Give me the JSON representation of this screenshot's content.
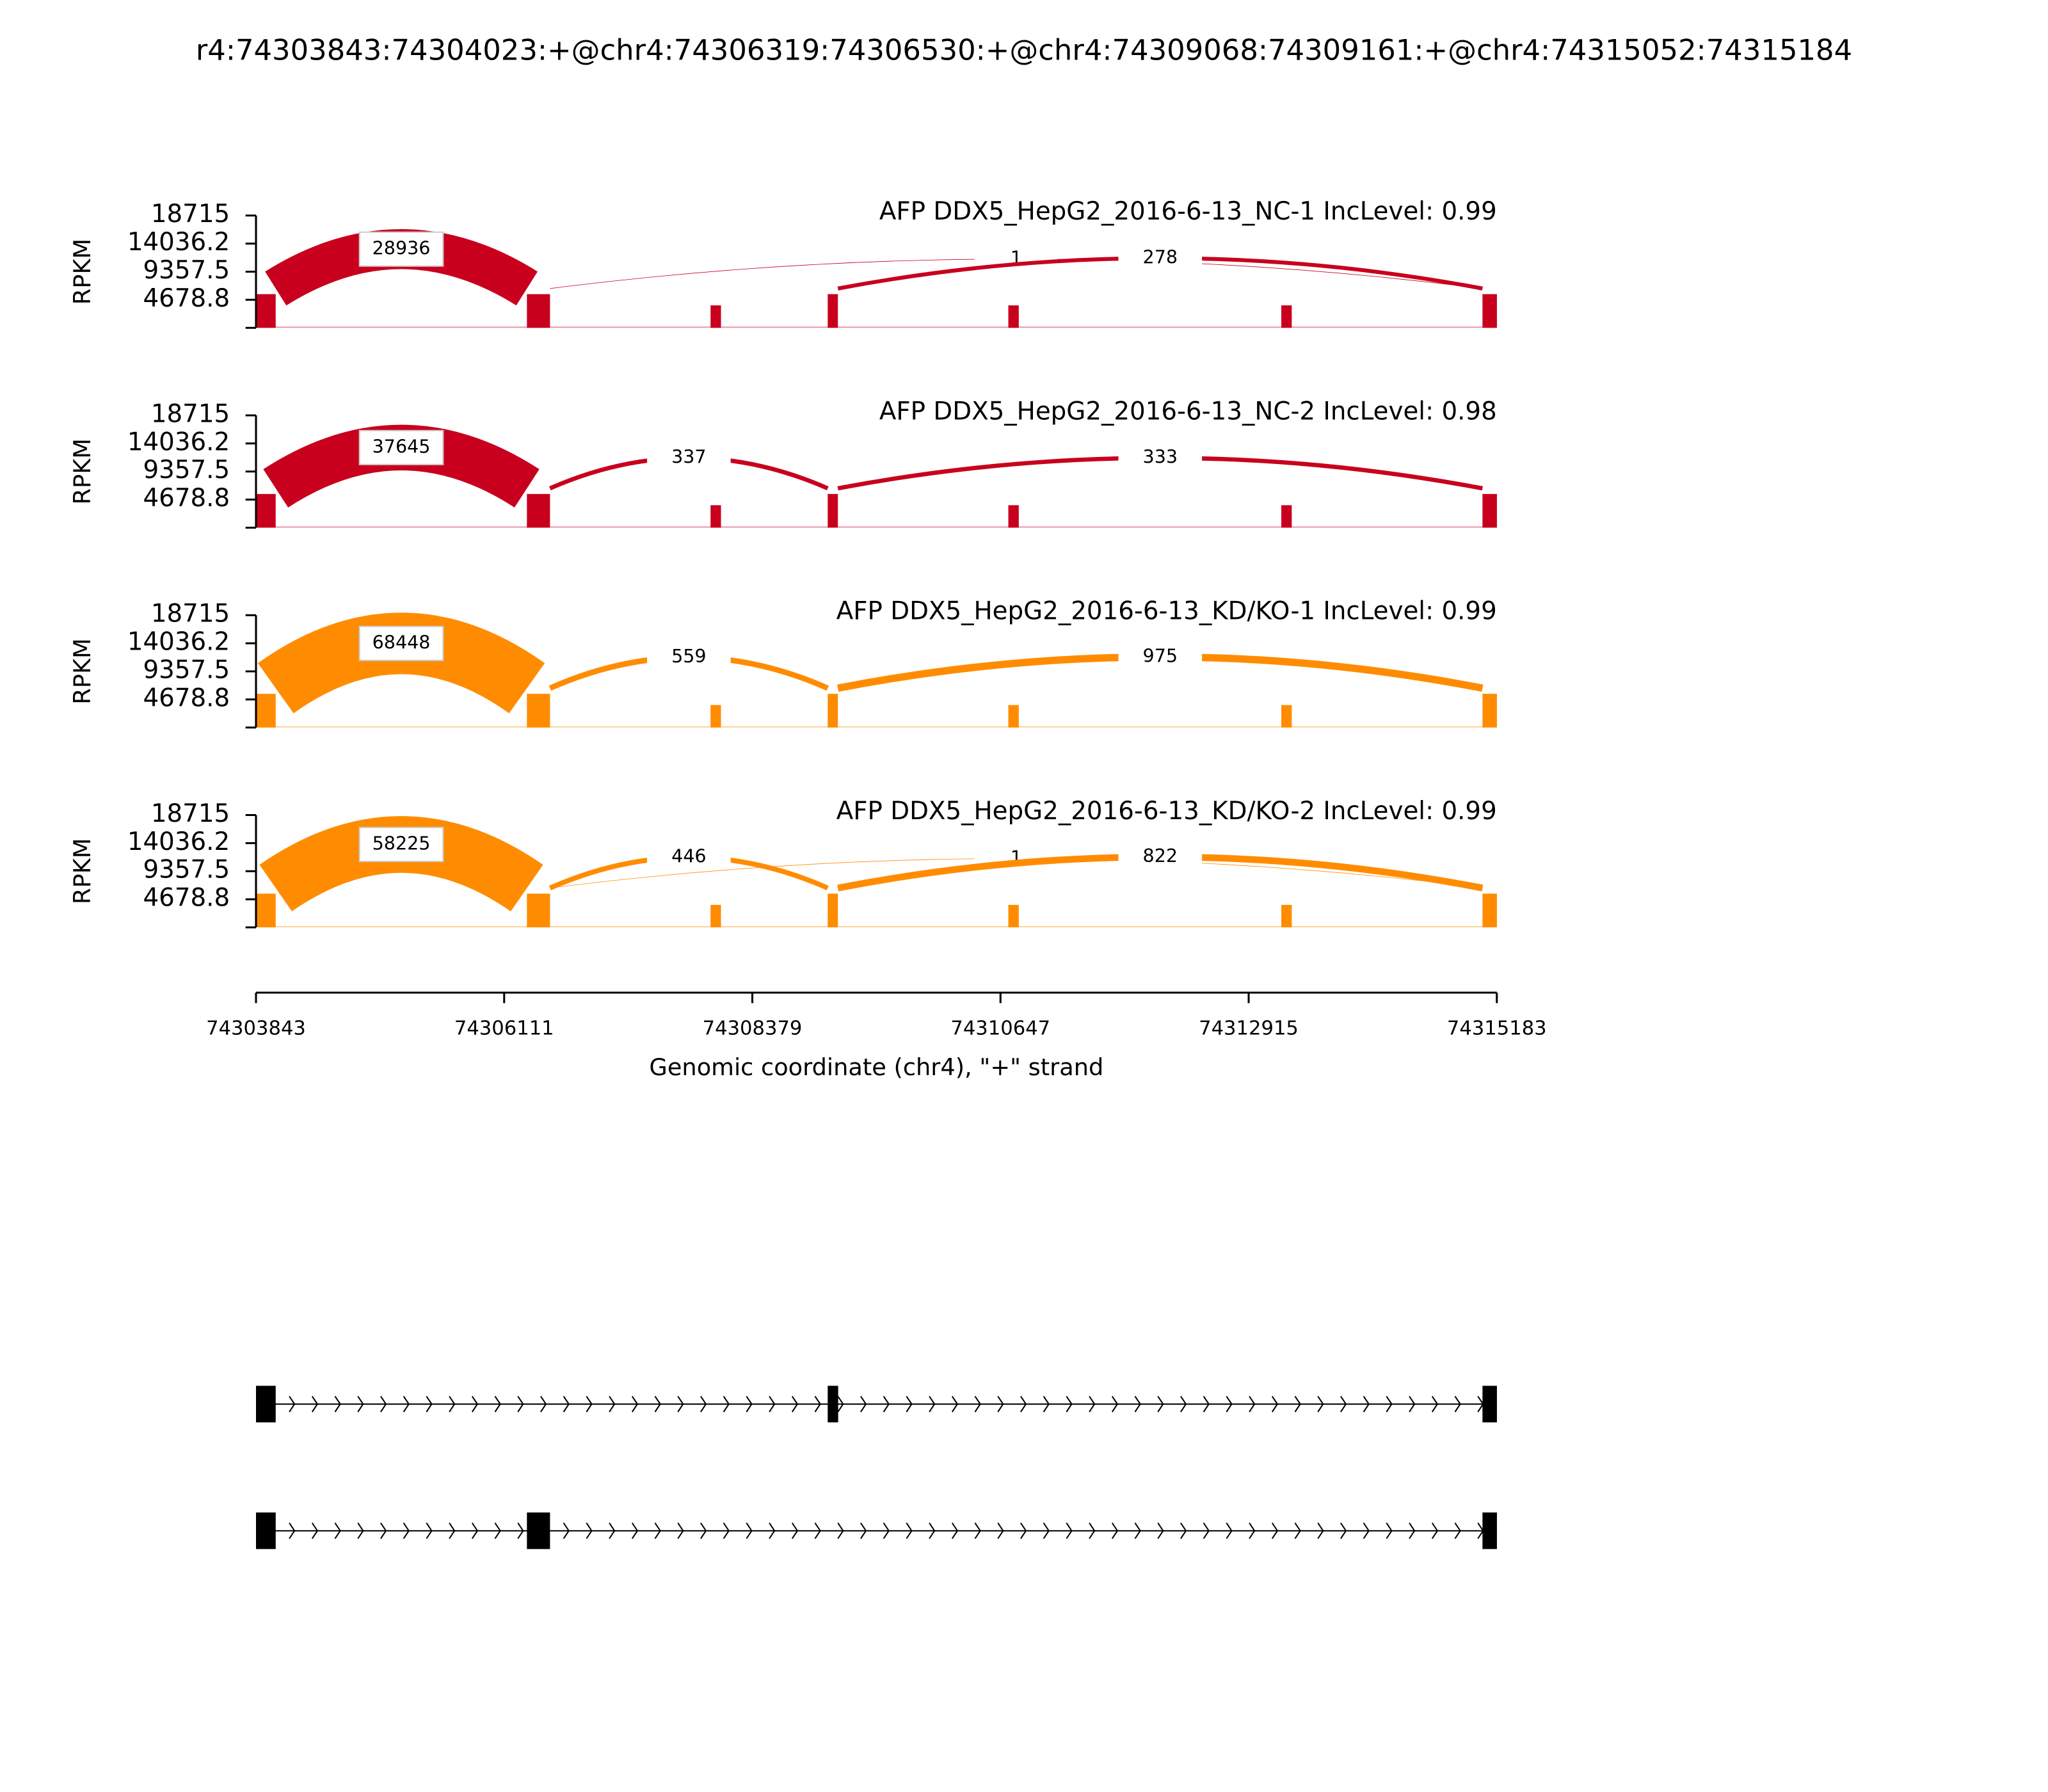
{
  "chart_data": {
    "type": "sashimi",
    "title": "r4:74303843:74304023:+@chr4:74306319:74306530:+@chr4:74309068:74309161:+@chr4:74315052:74315184",
    "xlabel": "Genomic coordinate (chr4), \"+\" strand",
    "ylabel": "RPKM",
    "xlim": [
      74303843,
      74315183
    ],
    "xticks": [
      74303843,
      74306111,
      74308379,
      74310647,
      74312915,
      74315183
    ],
    "ylim": [
      0,
      18715
    ],
    "yticks": [
      4678.8,
      9357.5,
      14036.2,
      18715
    ],
    "exons": [
      [
        74303843,
        74304023
      ],
      [
        74306319,
        74306530
      ],
      [
        74309068,
        74309161
      ],
      [
        74315052,
        74315184
      ]
    ],
    "isoforms": [
      [
        0,
        2,
        3
      ],
      [
        0,
        1,
        3
      ]
    ],
    "panels": [
      {
        "name": "AFP DDX5_HepG2_2016-6-13_NC-1 IncLevel: 0.99",
        "color": "#c8001e",
        "junctions": [
          {
            "from": 0,
            "to": 1,
            "count": 28936
          },
          {
            "from": 1,
            "to": 3,
            "count": 1
          },
          {
            "from": 2,
            "to": 3,
            "count": 278
          }
        ]
      },
      {
        "name": "AFP DDX5_HepG2_2016-6-13_NC-2 IncLevel: 0.98",
        "color": "#c8001e",
        "junctions": [
          {
            "from": 0,
            "to": 1,
            "count": 37645
          },
          {
            "from": 1,
            "to": 2,
            "count": 337
          },
          {
            "from": 2,
            "to": 3,
            "count": 333
          }
        ]
      },
      {
        "name": "AFP DDX5_HepG2_2016-6-13_KD/KO-1 IncLevel: 0.99",
        "color": "#ff8c00",
        "junctions": [
          {
            "from": 0,
            "to": 1,
            "count": 68448
          },
          {
            "from": 1,
            "to": 2,
            "count": 559
          },
          {
            "from": 2,
            "to": 3,
            "count": 975
          }
        ]
      },
      {
        "name": "AFP DDX5_HepG2_2016-6-13_KD/KO-2 IncLevel: 0.99",
        "color": "#ff8c00",
        "junctions": [
          {
            "from": 0,
            "to": 1,
            "count": 58225
          },
          {
            "from": 1,
            "to": 2,
            "count": 446
          },
          {
            "from": 1,
            "to": 3,
            "count": 1
          },
          {
            "from": 2,
            "to": 3,
            "count": 822
          }
        ]
      }
    ]
  }
}
